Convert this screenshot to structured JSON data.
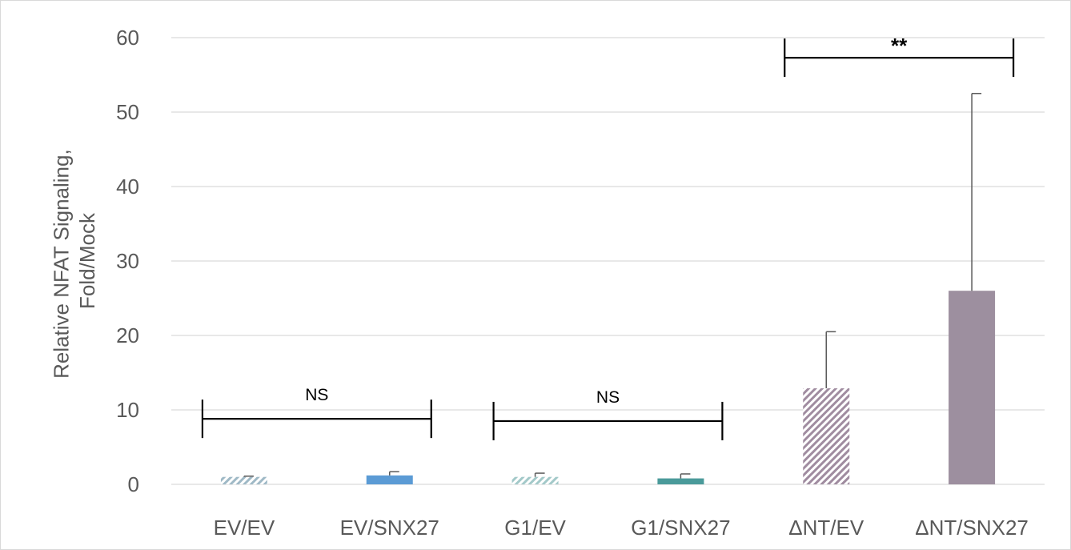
{
  "chart_data": {
    "type": "bar",
    "categories": [
      "EV/EV",
      "EV/SNX27",
      "G1/EV",
      "G1/SNX27",
      "ΔNT/EV",
      "ΔNT/SNX27"
    ],
    "values": [
      1.0,
      1.2,
      1.0,
      0.8,
      12.9,
      26.0
    ],
    "error_upper": [
      0.1,
      0.5,
      0.5,
      0.6,
      7.6,
      26.5
    ],
    "bar_colors": [
      "#9fb9c6",
      "#5b9bd5",
      "#a3c9c9",
      "#4a9a9a",
      "#a08ca0",
      "#9d8f9f"
    ],
    "bar_patterns": [
      "hatch",
      "solid",
      "hatch",
      "solid",
      "hatch",
      "solid"
    ],
    "ylabel": [
      "Relative NFAT Signaling,",
      "Fold/Mock"
    ],
    "ylim": [
      0,
      60
    ],
    "yticks": [
      0,
      10,
      20,
      30,
      40,
      50,
      60
    ],
    "grid": true,
    "annotations": [
      {
        "from": 0,
        "to": 1,
        "label": "NS",
        "y": 8.8
      },
      {
        "from": 2,
        "to": 3,
        "label": "NS",
        "y": 8.5
      },
      {
        "from": 4,
        "to": 5,
        "label": "**",
        "y": 57.3
      }
    ]
  },
  "colors": {
    "grid": "#d9d9d9",
    "axis_text": "#595959",
    "error_bar": "#595959",
    "bracket": "#000000"
  }
}
